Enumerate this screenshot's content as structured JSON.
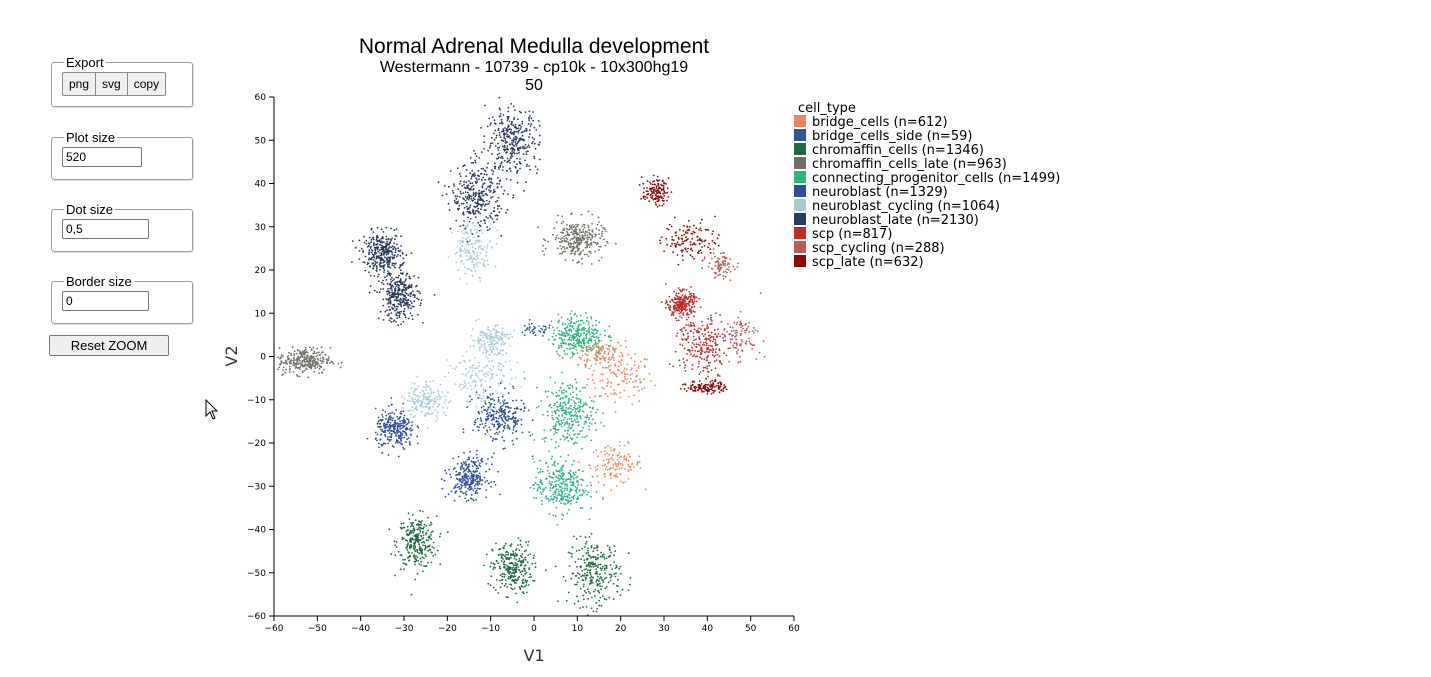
{
  "controls": {
    "export": {
      "legend": "Export",
      "buttons": [
        "png",
        "svg",
        "copy"
      ]
    },
    "plot_size": {
      "legend": "Plot size",
      "value": "520"
    },
    "dot_size": {
      "legend": "Dot size",
      "value": "0,5"
    },
    "border_size": {
      "legend": "Border size",
      "value": "0"
    },
    "reset_zoom_label": "Reset ZOOM"
  },
  "chart_data": {
    "type": "scatter",
    "title": "Normal Adrenal Medulla development",
    "subtitle": "Westermann - 10739 - cp10k - 10x300hg19",
    "subtitle2": "50",
    "xlabel": "V1",
    "ylabel": "V2",
    "xlim": [
      -60,
      60
    ],
    "ylim": [
      -60,
      60
    ],
    "xticks": [
      -60,
      -50,
      -40,
      -30,
      -20,
      -10,
      0,
      10,
      20,
      30,
      40,
      50,
      60
    ],
    "yticks": [
      -60,
      -50,
      -40,
      -30,
      -20,
      -10,
      0,
      10,
      20,
      30,
      40,
      50,
      60
    ],
    "grid": false,
    "legend_title": "cell_type",
    "legend_position": "right",
    "series": [
      {
        "name": "bridge_cells",
        "label": "bridge_cells (n=612)",
        "color": "#f0845f",
        "n": 612,
        "clusters": [
          {
            "x": 20,
            "y": -5,
            "sx": 5,
            "sy": 4
          },
          {
            "x": 15,
            "y": 1,
            "sx": 4,
            "sy": 2
          },
          {
            "x": 19,
            "y": -25,
            "sx": 4,
            "sy": 3
          }
        ]
      },
      {
        "name": "bridge_cells_side",
        "label": "bridge_cells_side (n=59)",
        "color": "#2f5597",
        "n": 59,
        "clusters": [
          {
            "x": 0,
            "y": 6,
            "sx": 3,
            "sy": 1
          }
        ]
      },
      {
        "name": "chromaffin_cells",
        "label": "chromaffin_cells (n=1346)",
        "color": "#1e6b40",
        "n": 1346,
        "clusters": [
          {
            "x": -27,
            "y": -43,
            "sx": 3,
            "sy": 4
          },
          {
            "x": -5,
            "y": -49,
            "sx": 3,
            "sy": 4
          },
          {
            "x": 14,
            "y": -50,
            "sx": 4,
            "sy": 5
          }
        ]
      },
      {
        "name": "chromaffin_cells_late",
        "label": "chromaffin_cells_late (n=963)",
        "color": "#70706a",
        "n": 963,
        "clusters": [
          {
            "x": 10,
            "y": 27,
            "sx": 4,
            "sy": 3
          },
          {
            "x": -53,
            "y": -1,
            "sx": 4,
            "sy": 2
          }
        ]
      },
      {
        "name": "connecting_progenitor_cells",
        "label": "connecting_progenitor_cells (n=1499)",
        "color": "#2fb57d",
        "n": 1499,
        "clusters": [
          {
            "x": 8,
            "y": -13,
            "sx": 4,
            "sy": 5
          },
          {
            "x": 6,
            "y": -30,
            "sx": 4,
            "sy": 4
          },
          {
            "x": 10,
            "y": 5,
            "sx": 4,
            "sy": 3
          }
        ]
      },
      {
        "name": "neuroblast",
        "label": "neuroblast (n=1329)",
        "color": "#2f4f9a",
        "n": 1329,
        "clusters": [
          {
            "x": -32,
            "y": -17,
            "sx": 3,
            "sy": 3
          },
          {
            "x": -15,
            "y": -28,
            "sx": 3,
            "sy": 3
          },
          {
            "x": -8,
            "y": -14,
            "sx": 4,
            "sy": 4
          }
        ]
      },
      {
        "name": "neuroblast_cycling",
        "label": "neuroblast_cycling (n=1064)",
        "color": "#a9cad4",
        "n": 1064,
        "clusters": [
          {
            "x": -12,
            "y": -5,
            "sx": 5,
            "sy": 4
          },
          {
            "x": -14,
            "y": 25,
            "sx": 3,
            "sy": 4
          },
          {
            "x": -25,
            "y": -10,
            "sx": 3,
            "sy": 3
          },
          {
            "x": -10,
            "y": 4,
            "sx": 3,
            "sy": 2
          }
        ]
      },
      {
        "name": "neuroblast_late",
        "label": "neuroblast_late (n=2130)",
        "color": "#2b3a5c",
        "n": 2130,
        "clusters": [
          {
            "x": -5,
            "y": 50,
            "sx": 4,
            "sy": 5
          },
          {
            "x": -13,
            "y": 37,
            "sx": 4,
            "sy": 5
          },
          {
            "x": -31,
            "y": 14,
            "sx": 3,
            "sy": 4
          },
          {
            "x": -35,
            "y": 24,
            "sx": 3,
            "sy": 3
          }
        ]
      },
      {
        "name": "scp",
        "label": "scp (n=817)",
        "color": "#c02b2b",
        "n": 817,
        "clusters": [
          {
            "x": 39,
            "y": 3,
            "sx": 4,
            "sy": 5
          },
          {
            "x": 34,
            "y": 12,
            "sx": 2,
            "sy": 2
          }
        ]
      },
      {
        "name": "scp_cycling",
        "label": "scp_cycling (n=288)",
        "color": "#b85d5d",
        "n": 288,
        "clusters": [
          {
            "x": 48,
            "y": 5,
            "sx": 3,
            "sy": 3
          },
          {
            "x": 43,
            "y": 21,
            "sx": 2,
            "sy": 2
          }
        ]
      },
      {
        "name": "scp_late",
        "label": "scp_late (n=632)",
        "color": "#8b0a0a",
        "n": 632,
        "clusters": [
          {
            "x": 28,
            "y": 38,
            "sx": 2,
            "sy": 2
          },
          {
            "x": 36,
            "y": 27,
            "sx": 4,
            "sy": 3
          },
          {
            "x": 40,
            "y": -7,
            "sx": 3,
            "sy": 1
          }
        ]
      }
    ]
  }
}
